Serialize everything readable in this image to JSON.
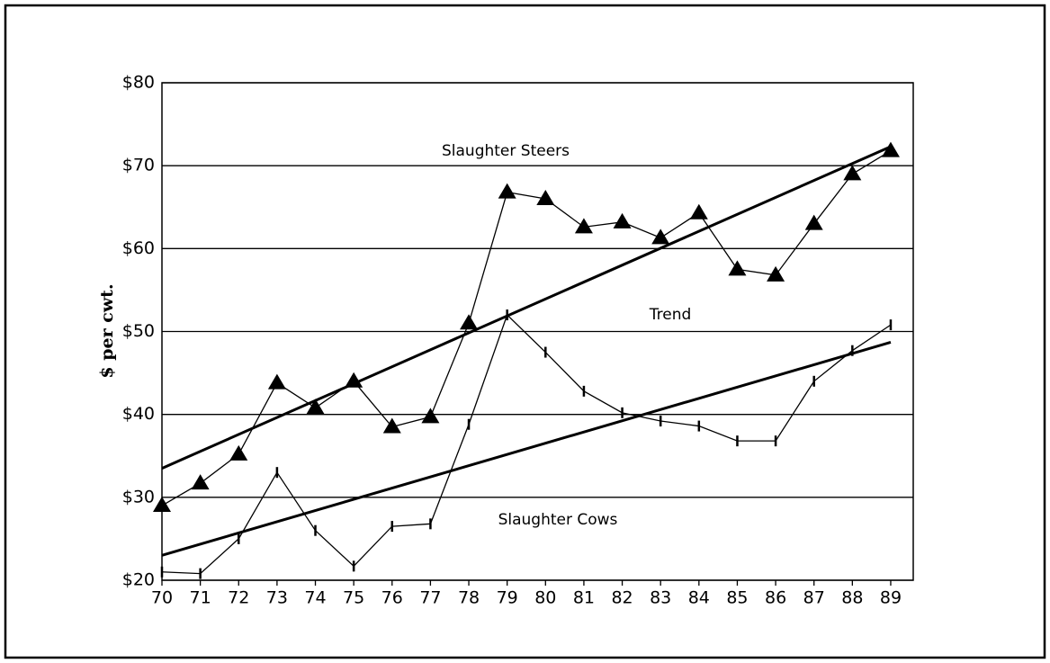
{
  "chart_data": {
    "type": "line",
    "ylabel": "$ per cwt.",
    "categories": [
      "70",
      "71",
      "72",
      "73",
      "74",
      "75",
      "76",
      "77",
      "78",
      "79",
      "80",
      "81",
      "82",
      "83",
      "84",
      "85",
      "86",
      "87",
      "88",
      "89"
    ],
    "series": [
      {
        "name": "Slaughter Steers",
        "color": "#000000",
        "marker": "triangle",
        "values": [
          29,
          31.7,
          35.2,
          43.8,
          40.8,
          44,
          38.5,
          39.7,
          51,
          66.8,
          66,
          62.6,
          63.2,
          61.3,
          64.3,
          57.5,
          56.8,
          63,
          69,
          71.8
        ]
      },
      {
        "name": "Slaughter Cows",
        "color": "#000000",
        "marker": "tick",
        "values": [
          21,
          20.8,
          25,
          33,
          26,
          21.7,
          26.5,
          26.8,
          38.8,
          52,
          47.5,
          42.8,
          40.2,
          39.2,
          38.6,
          36.8,
          36.8,
          44,
          47.7,
          50.8
        ]
      }
    ],
    "trend_label": "Trend",
    "trends": [
      {
        "from": 33.5,
        "to": 72.3
      },
      {
        "from": 23,
        "to": 48.7
      }
    ],
    "ylim": [
      20,
      80
    ],
    "yticks": [
      {
        "value": 20,
        "label": "$20"
      },
      {
        "value": 30,
        "label": "$30"
      },
      {
        "value": 40,
        "label": "$40"
      },
      {
        "value": 50,
        "label": "$50"
      },
      {
        "value": 60,
        "label": "$60"
      },
      {
        "value": 70,
        "label": "$70"
      },
      {
        "value": 80,
        "label": "$80"
      }
    ],
    "grid": true
  }
}
